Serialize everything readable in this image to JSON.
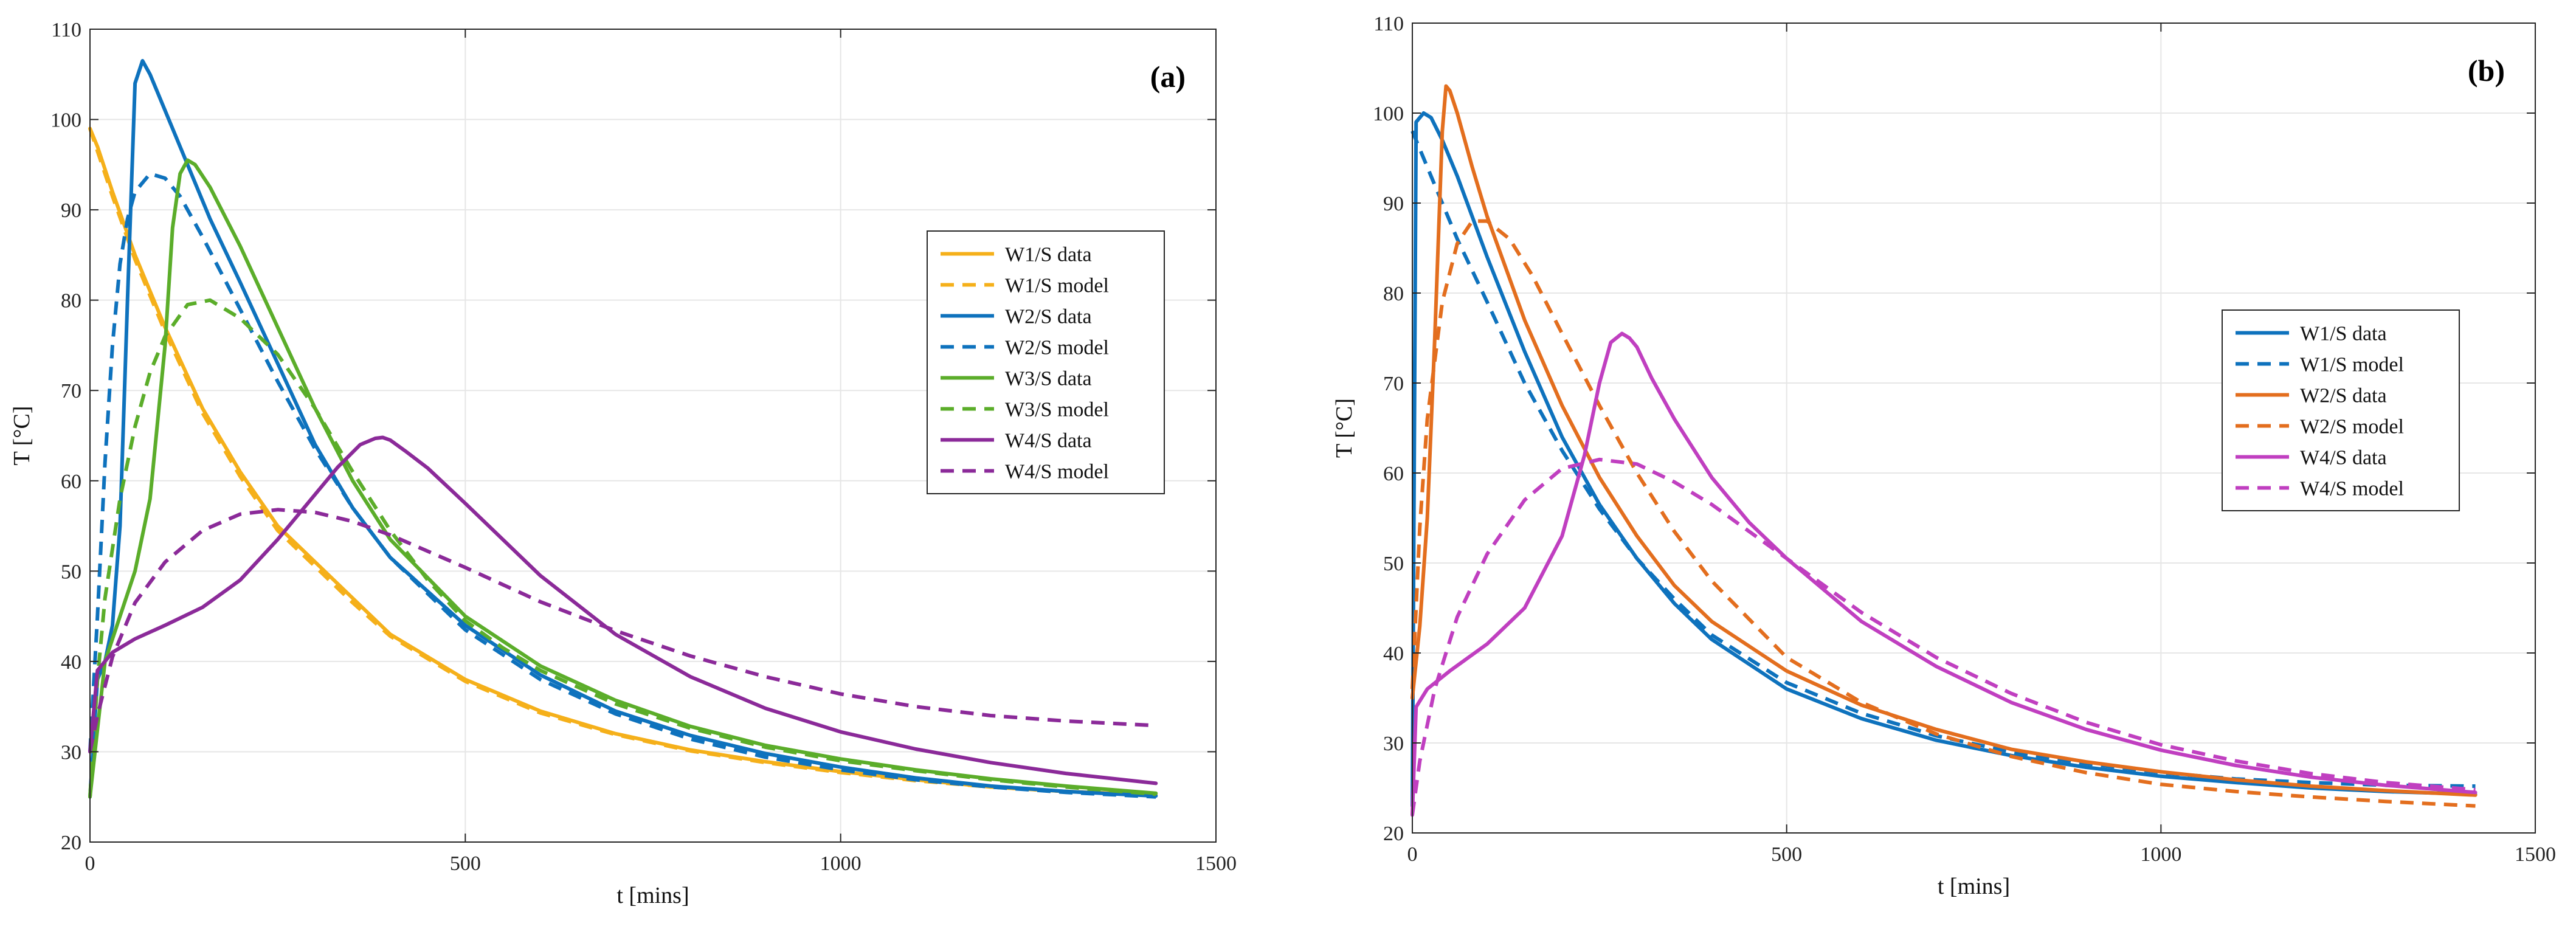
{
  "chart_data": [
    {
      "type": "line",
      "panel": "(a)",
      "xlabel": "t [mins]",
      "ylabel": "T [°C]",
      "xlim": [
        0,
        1500
      ],
      "ylim": [
        20,
        110
      ],
      "xticks": [
        0,
        500,
        1000,
        1500
      ],
      "yticks": [
        20,
        30,
        40,
        50,
        60,
        70,
        80,
        90,
        100,
        110
      ],
      "grid": true,
      "legend_position": "right-center",
      "series": [
        {
          "name": "W1/S data",
          "color": "#F5B01A",
          "dash": "solid",
          "x": [
            0,
            10,
            30,
            60,
            100,
            150,
            200,
            250,
            300,
            350,
            400,
            500,
            600,
            700,
            800,
            900,
            1000,
            1100,
            1200,
            1300,
            1420
          ],
          "y": [
            99,
            97,
            92,
            85,
            77,
            68,
            61,
            55,
            51,
            47,
            43,
            38,
            34.5,
            32,
            30.2,
            28.9,
            27.8,
            26.9,
            26.1,
            25.6,
            25.2
          ]
        },
        {
          "name": "W1/S model",
          "color": "#F5B01A",
          "dash": "dashed",
          "x": [
            0,
            10,
            30,
            60,
            100,
            150,
            200,
            250,
            300,
            350,
            400,
            500,
            600,
            700,
            800,
            900,
            1000,
            1100,
            1200,
            1300,
            1420
          ],
          "y": [
            99,
            96.5,
            91.5,
            84.5,
            76.5,
            67.5,
            60.5,
            54.5,
            50.5,
            46.5,
            42.8,
            37.8,
            34.3,
            31.9,
            30.1,
            28.8,
            27.7,
            26.8,
            26.1,
            25.6,
            25.2
          ]
        },
        {
          "name": "W2/S data",
          "color": "#0E72BD",
          "dash": "solid",
          "x": [
            0,
            10,
            20,
            30,
            40,
            50,
            60,
            70,
            80,
            100,
            130,
            160,
            200,
            250,
            300,
            350,
            400,
            500,
            600,
            700,
            800,
            900,
            1000,
            1100,
            1200,
            1300,
            1420
          ],
          "y": [
            25,
            38,
            40,
            44,
            55,
            80,
            104,
            106.5,
            105,
            101,
            95,
            89,
            82,
            73,
            64,
            57,
            51.5,
            44,
            38.5,
            34.5,
            31.8,
            29.8,
            28.3,
            27.1,
            26.2,
            25.6,
            25.1
          ]
        },
        {
          "name": "W2/S model",
          "color": "#0E72BD",
          "dash": "dashed",
          "x": [
            0,
            10,
            20,
            30,
            40,
            50,
            60,
            80,
            100,
            120,
            150,
            200,
            250,
            300,
            350,
            400,
            500,
            600,
            700,
            800,
            900,
            1000,
            1100,
            1200,
            1300,
            1420
          ],
          "y": [
            30,
            45,
            62,
            75,
            84,
            89,
            92,
            94,
            93.5,
            91.5,
            87,
            79,
            71,
            63.5,
            57,
            51.5,
            43.5,
            38,
            34.2,
            31.4,
            29.4,
            28,
            26.9,
            26.1,
            25.5,
            25
          ]
        },
        {
          "name": "W3/S data",
          "color": "#5BAD2A",
          "dash": "solid",
          "x": [
            0,
            20,
            40,
            60,
            80,
            100,
            110,
            120,
            130,
            140,
            160,
            200,
            250,
            300,
            350,
            400,
            500,
            600,
            700,
            800,
            900,
            1000,
            1100,
            1200,
            1300,
            1420
          ],
          "y": [
            25,
            40,
            45,
            50,
            58,
            75,
            88,
            94,
            95.5,
            95,
            92.5,
            86,
            77,
            68,
            60,
            53.5,
            45,
            39.5,
            35.7,
            32.8,
            30.7,
            29.2,
            28,
            27,
            26.2,
            25.4
          ]
        },
        {
          "name": "W3/S model",
          "color": "#5BAD2A",
          "dash": "dashed",
          "x": [
            0,
            10,
            20,
            40,
            60,
            80,
            100,
            130,
            160,
            200,
            250,
            300,
            350,
            400,
            450,
            500,
            550,
            600,
            700,
            800,
            900,
            1000,
            1100,
            1200,
            1300,
            1420
          ],
          "y": [
            25,
            38,
            47,
            58,
            66,
            72,
            76,
            79.5,
            80,
            78,
            74,
            68,
            61,
            54.5,
            49,
            44.5,
            41.5,
            39,
            35.3,
            32.6,
            30.5,
            29,
            27.9,
            26.9,
            26.1,
            25.3
          ]
        },
        {
          "name": "W4/S data",
          "color": "#8B2A99",
          "dash": "solid",
          "x": [
            0,
            10,
            30,
            60,
            100,
            150,
            200,
            250,
            300,
            330,
            360,
            380,
            390,
            400,
            420,
            450,
            500,
            600,
            700,
            800,
            900,
            1000,
            1100,
            1200,
            1300,
            1420
          ],
          "y": [
            30,
            39,
            41,
            42.5,
            44,
            46,
            49,
            53.5,
            58.5,
            61.5,
            64,
            64.7,
            64.8,
            64.5,
            63.3,
            61.4,
            57.5,
            49.5,
            43,
            38.3,
            34.8,
            32.2,
            30.3,
            28.8,
            27.6,
            26.5
          ]
        },
        {
          "name": "W4/S model",
          "color": "#8B2A99",
          "dash": "dashed",
          "x": [
            0,
            10,
            30,
            60,
            100,
            150,
            200,
            250,
            300,
            350,
            400,
            500,
            600,
            700,
            800,
            900,
            1000,
            1100,
            1200,
            1300,
            1420
          ],
          "y": [
            30,
            34,
            40.5,
            46.5,
            51,
            54.5,
            56.3,
            56.8,
            56.5,
            55.5,
            54,
            50.4,
            46.6,
            43.4,
            40.6,
            38.3,
            36.4,
            35,
            34,
            33.4,
            32.9
          ]
        }
      ]
    },
    {
      "type": "line",
      "panel": "(b)",
      "xlabel": "t [mins]",
      "ylabel": "T [°C]",
      "xlim": [
        0,
        1500
      ],
      "ylim": [
        20,
        110
      ],
      "xticks": [
        0,
        500,
        1000,
        1500
      ],
      "yticks": [
        20,
        30,
        40,
        50,
        60,
        70,
        80,
        90,
        100,
        110
      ],
      "grid": true,
      "legend_position": "right-center",
      "series": [
        {
          "name": "W1/S data",
          "color": "#0E72BD",
          "dash": "solid",
          "x": [
            0,
            5,
            15,
            25,
            40,
            60,
            80,
            100,
            150,
            200,
            250,
            300,
            350,
            400,
            500,
            600,
            700,
            800,
            900,
            1000,
            1100,
            1200,
            1300,
            1420
          ],
          "y": [
            23,
            99,
            100,
            99.5,
            97,
            93,
            88.5,
            84,
            73.5,
            64,
            56.5,
            50.5,
            45.5,
            41.5,
            36,
            32.7,
            30.3,
            28.6,
            27.3,
            26.3,
            25.6,
            25,
            24.6,
            24.3
          ]
        },
        {
          "name": "W1/S model",
          "color": "#0E72BD",
          "dash": "dashed",
          "x": [
            0,
            10,
            30,
            60,
            100,
            150,
            200,
            250,
            300,
            350,
            400,
            500,
            600,
            700,
            800,
            900,
            1000,
            1100,
            1200,
            1300,
            1420
          ],
          "y": [
            98,
            96,
            92,
            86,
            79,
            70,
            62.5,
            56,
            50.5,
            46,
            42,
            36.7,
            33.3,
            30.8,
            29,
            27.7,
            26.7,
            26,
            25.6,
            25.3,
            25.2
          ]
        },
        {
          "name": "W2/S data",
          "color": "#E36E1E",
          "dash": "solid",
          "x": [
            0,
            10,
            20,
            30,
            40,
            45,
            50,
            60,
            80,
            100,
            150,
            200,
            250,
            300,
            350,
            400,
            500,
            600,
            700,
            800,
            900,
            1000,
            1100,
            1200,
            1300,
            1420
          ],
          "y": [
            35,
            43,
            55,
            75,
            98,
            103,
            102.5,
            100,
            94,
            88.5,
            77,
            67.5,
            59.5,
            53,
            47.5,
            43.5,
            38,
            34.2,
            31.5,
            29.3,
            27.9,
            26.8,
            25.9,
            25.2,
            24.7,
            24.2
          ]
        },
        {
          "name": "W2/S model",
          "color": "#E36E1E",
          "dash": "dashed",
          "x": [
            0,
            10,
            20,
            40,
            60,
            80,
            100,
            130,
            160,
            200,
            250,
            300,
            350,
            400,
            500,
            600,
            700,
            800,
            900,
            1000,
            1100,
            1200,
            1300,
            1420
          ],
          "y": [
            36,
            54,
            66,
            79,
            85.5,
            88,
            88,
            86,
            82,
            75.5,
            67.5,
            60,
            53.5,
            48,
            39.5,
            34.5,
            31,
            28.5,
            26.7,
            25.4,
            24.6,
            24,
            23.5,
            23
          ]
        },
        {
          "name": "W4/S data",
          "color": "#C03FC0",
          "dash": "solid",
          "x": [
            0,
            5,
            20,
            50,
            100,
            150,
            200,
            230,
            250,
            265,
            280,
            290,
            300,
            320,
            350,
            400,
            450,
            500,
            600,
            700,
            800,
            900,
            1000,
            1100,
            1200,
            1300,
            1420
          ],
          "y": [
            22,
            34,
            36,
            38,
            41,
            45,
            53,
            62,
            70,
            74.5,
            75.5,
            75,
            74,
            70.5,
            66,
            59.5,
            54.5,
            50.5,
            43.5,
            38.5,
            34.5,
            31.5,
            29.2,
            27.5,
            26.2,
            25.3,
            24.5
          ]
        },
        {
          "name": "W4/S model",
          "color": "#C03FC0",
          "dash": "dashed",
          "x": [
            0,
            10,
            30,
            60,
            100,
            150,
            200,
            250,
            300,
            350,
            400,
            500,
            600,
            700,
            800,
            900,
            1000,
            1100,
            1200,
            1300,
            1420
          ],
          "y": [
            22,
            28,
            36,
            44,
            51,
            57,
            60.5,
            61.5,
            61,
            59,
            56.5,
            50.5,
            44.5,
            39.5,
            35.5,
            32.3,
            29.8,
            28,
            26.6,
            25.6,
            24.8
          ]
        }
      ]
    }
  ]
}
